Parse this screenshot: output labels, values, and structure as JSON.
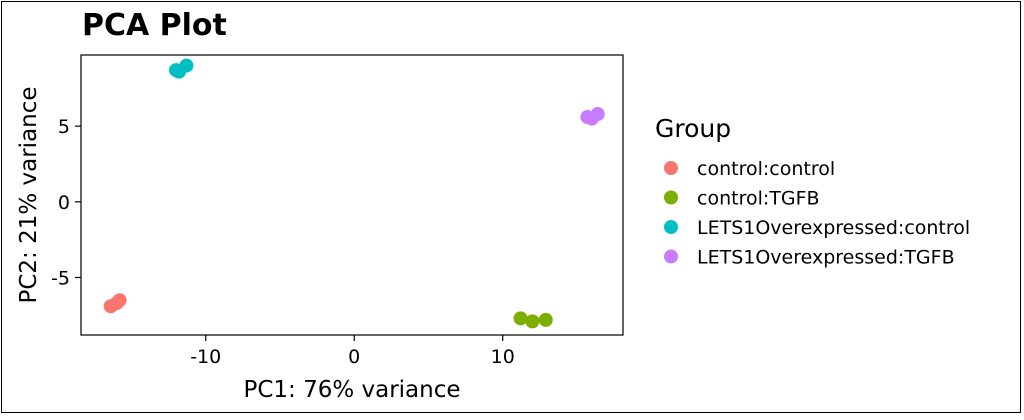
{
  "chart_data": {
    "type": "scatter",
    "title": "PCA Plot",
    "xlabel": "PC1: 76% variance",
    "ylabel": "PC2: 21% variance",
    "xlim": [
      -18.4,
      18.1
    ],
    "ylim": [
      -8.8,
      9.7
    ],
    "x_ticks": [
      -10,
      0,
      10
    ],
    "x_tick_labels": [
      "-10",
      "0",
      "10"
    ],
    "y_ticks": [
      -5,
      0,
      5
    ],
    "y_tick_labels": [
      "-5",
      "0",
      "5"
    ],
    "grid": false,
    "legend_title": "Group",
    "legend_position": "right",
    "series": [
      {
        "name": "control:control",
        "color": "#F8766D",
        "points": [
          [
            -16.4,
            -6.9
          ],
          [
            -16.0,
            -6.7
          ],
          [
            -15.8,
            -6.5
          ]
        ]
      },
      {
        "name": "control:TGFB",
        "color": "#7CAE00",
        "points": [
          [
            11.2,
            -7.7
          ],
          [
            12.0,
            -7.9
          ],
          [
            12.9,
            -7.8
          ]
        ]
      },
      {
        "name": "LETS1Overexpressed:control",
        "color": "#00BFC4",
        "points": [
          [
            -12.0,
            8.7
          ],
          [
            -11.8,
            8.6
          ],
          [
            -11.3,
            9.0
          ]
        ]
      },
      {
        "name": "LETS1Overexpressed:TGFB",
        "color": "#C77CFF",
        "points": [
          [
            15.7,
            5.6
          ],
          [
            16.0,
            5.5
          ],
          [
            16.4,
            5.8
          ]
        ]
      }
    ]
  }
}
